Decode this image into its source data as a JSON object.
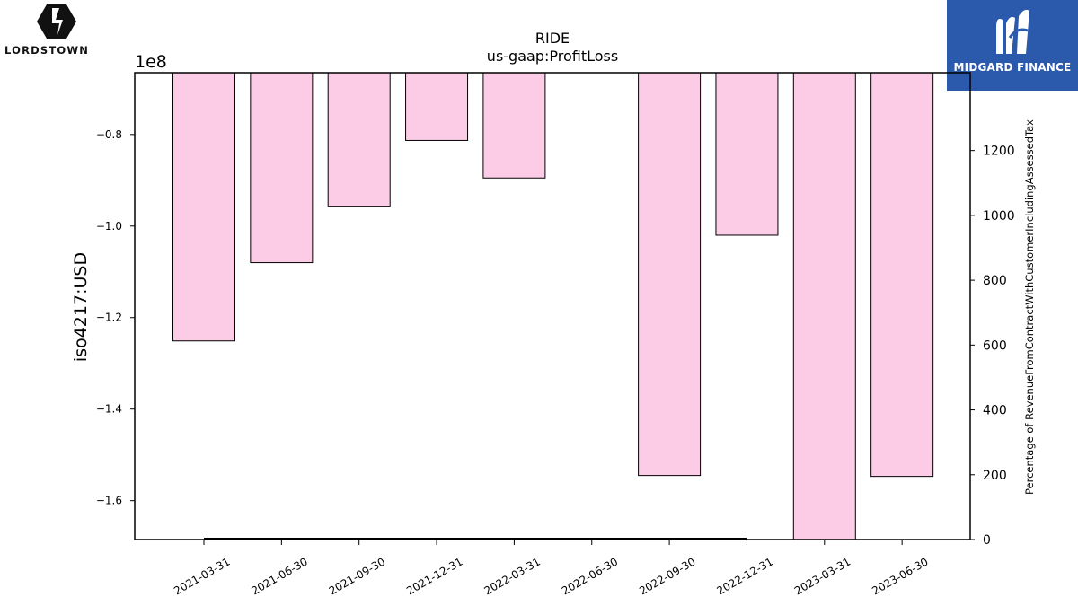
{
  "logos": {
    "left_text": "LORDSTOWN",
    "right_text": "MIDGARD FINANCE"
  },
  "chart_data": {
    "type": "bar",
    "title": "RIDE",
    "subtitle": "us-gaap:ProfitLoss",
    "ylabel": "iso4217:USD",
    "y_offset_label": "1e8",
    "y2label": "Percentage of RevenueFromContractWithCustomerIncludingAssessedTax",
    "categories": [
      "2021-03-31",
      "2021-06-30",
      "2021-09-30",
      "2021-12-31",
      "2022-03-31",
      "2022-06-30",
      "2022-09-30",
      "2022-12-31",
      "2023-03-31",
      "2023-06-30"
    ],
    "values": [
      -125100000,
      -108000000,
      -95800000,
      -81300000,
      -89500000,
      null,
      -154500000,
      -102000000,
      -170000000,
      -154700000
    ],
    "ylim": [
      -168500000,
      -66500000
    ],
    "yticks": [
      -0.8,
      -1.0,
      -1.2,
      -1.4,
      -1.6
    ],
    "y2lim": [
      0,
      1440
    ],
    "y2ticks": [
      0,
      200,
      400,
      600,
      800,
      1000,
      1200
    ],
    "line_series": {
      "x_start": "2021-03-31",
      "x_end": "2022-12-31",
      "value": 0
    },
    "bar_color": "#fccce6",
    "bar_edge": "#000000",
    "grid": false
  }
}
